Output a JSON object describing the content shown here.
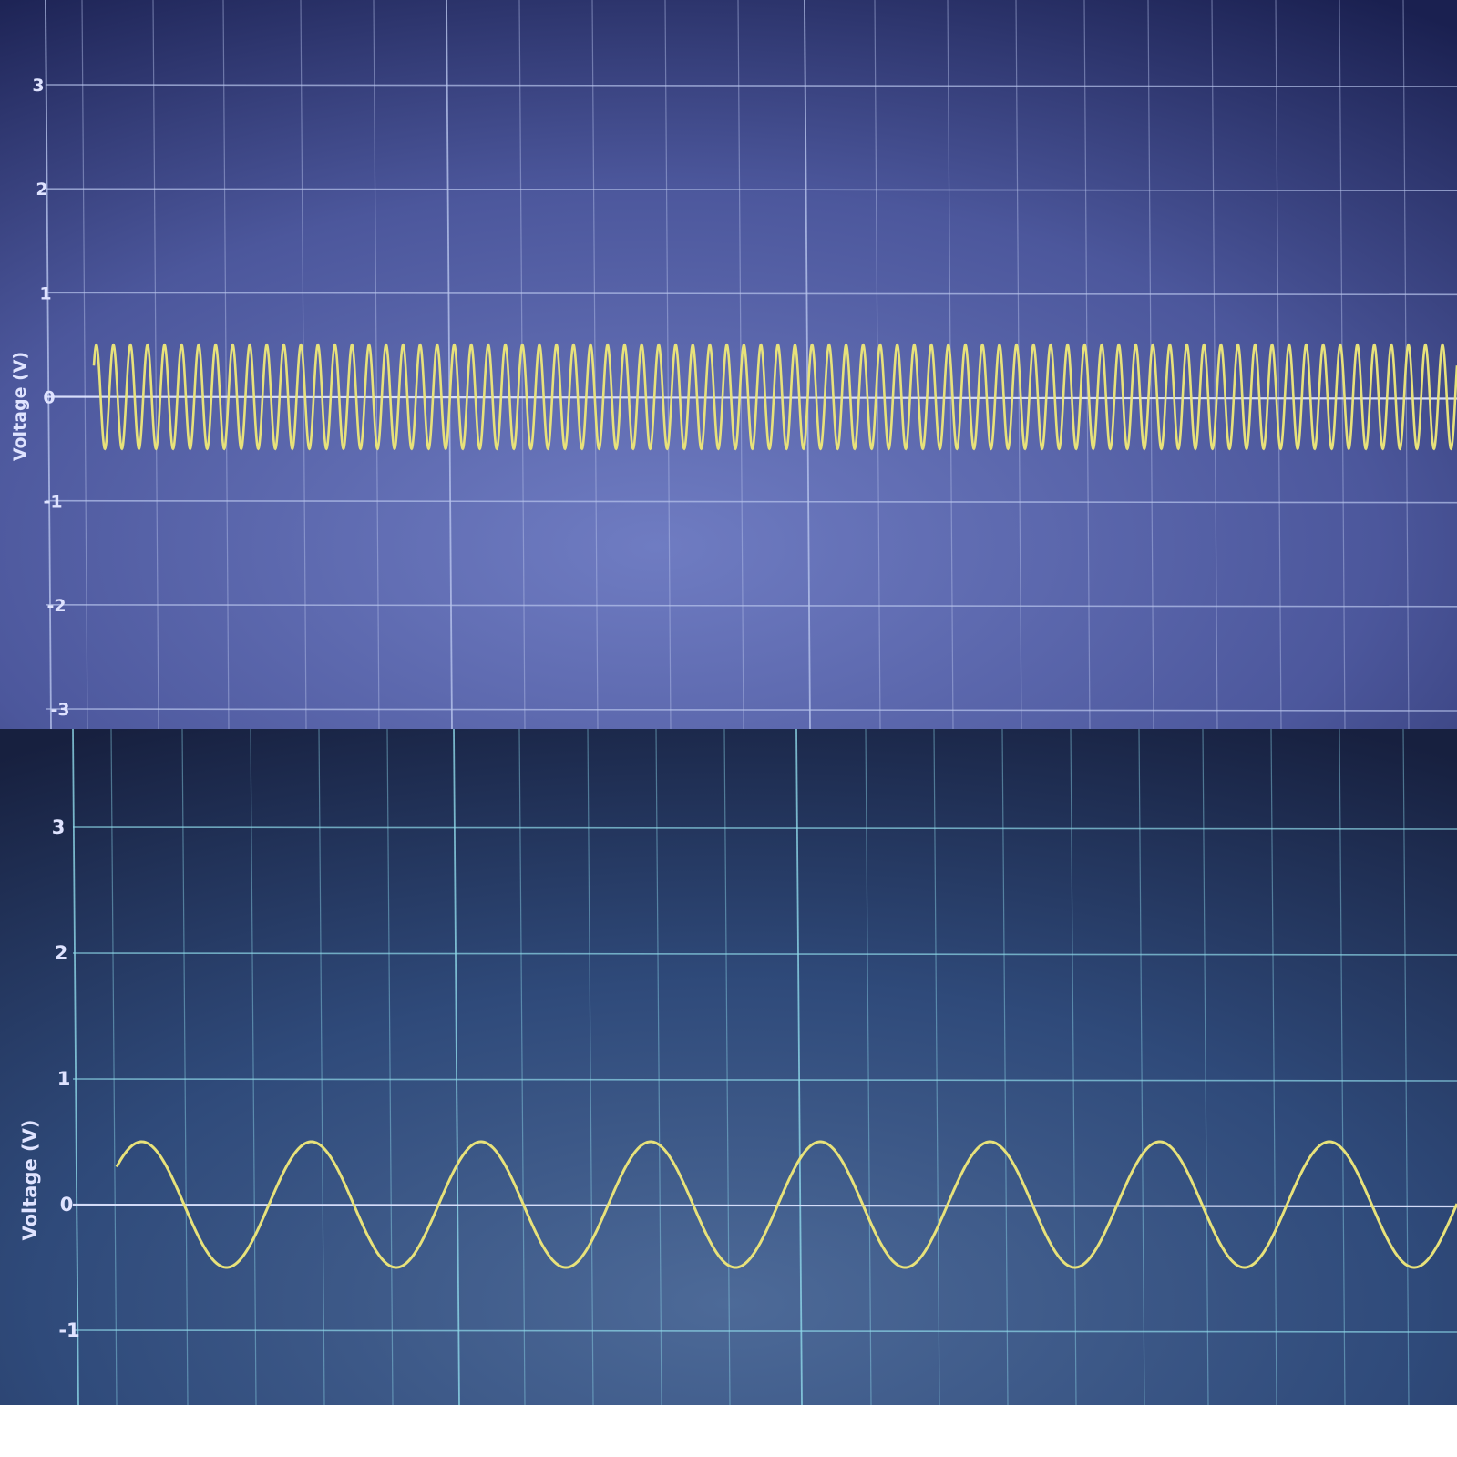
{
  "colors": {
    "trace": "#e8e27a",
    "grid": "#b8c4ec",
    "zero_line": "#dde4ff",
    "label": "#dfe3ff",
    "top_bg_dark": "#1a2050",
    "top_bg_mid": "#5d69b0",
    "top_bg_light": "#6f7cc2",
    "bottom_bg_dark": "#17203f",
    "bottom_bg_mid": "#2f4a7a",
    "bottom_bg_light": "#4d6a98",
    "bottom_grid": "#8fd8e8"
  },
  "chart_data": [
    {
      "type": "line",
      "title": "",
      "xlabel": "",
      "ylabel": "Voltage (V)",
      "ylim": [
        -3.2,
        3.6
      ],
      "yticks": [
        3,
        2,
        1,
        0,
        -1,
        -2,
        -3
      ],
      "grid": true,
      "series": [
        {
          "amplitude": 0.5,
          "offset": 0,
          "cycles_visible": 80,
          "start_value": 0.3
        }
      ]
    },
    {
      "type": "line",
      "title": "",
      "xlabel": "",
      "ylabel": "Voltage (V)",
      "ylim": [
        -1.6,
        3.8
      ],
      "yticks": [
        3,
        2,
        1,
        0,
        -1
      ],
      "grid": true,
      "series": [
        {
          "amplitude": 0.5,
          "offset": 0,
          "cycles_visible": 7.9,
          "start_value": 0.3
        }
      ]
    }
  ]
}
